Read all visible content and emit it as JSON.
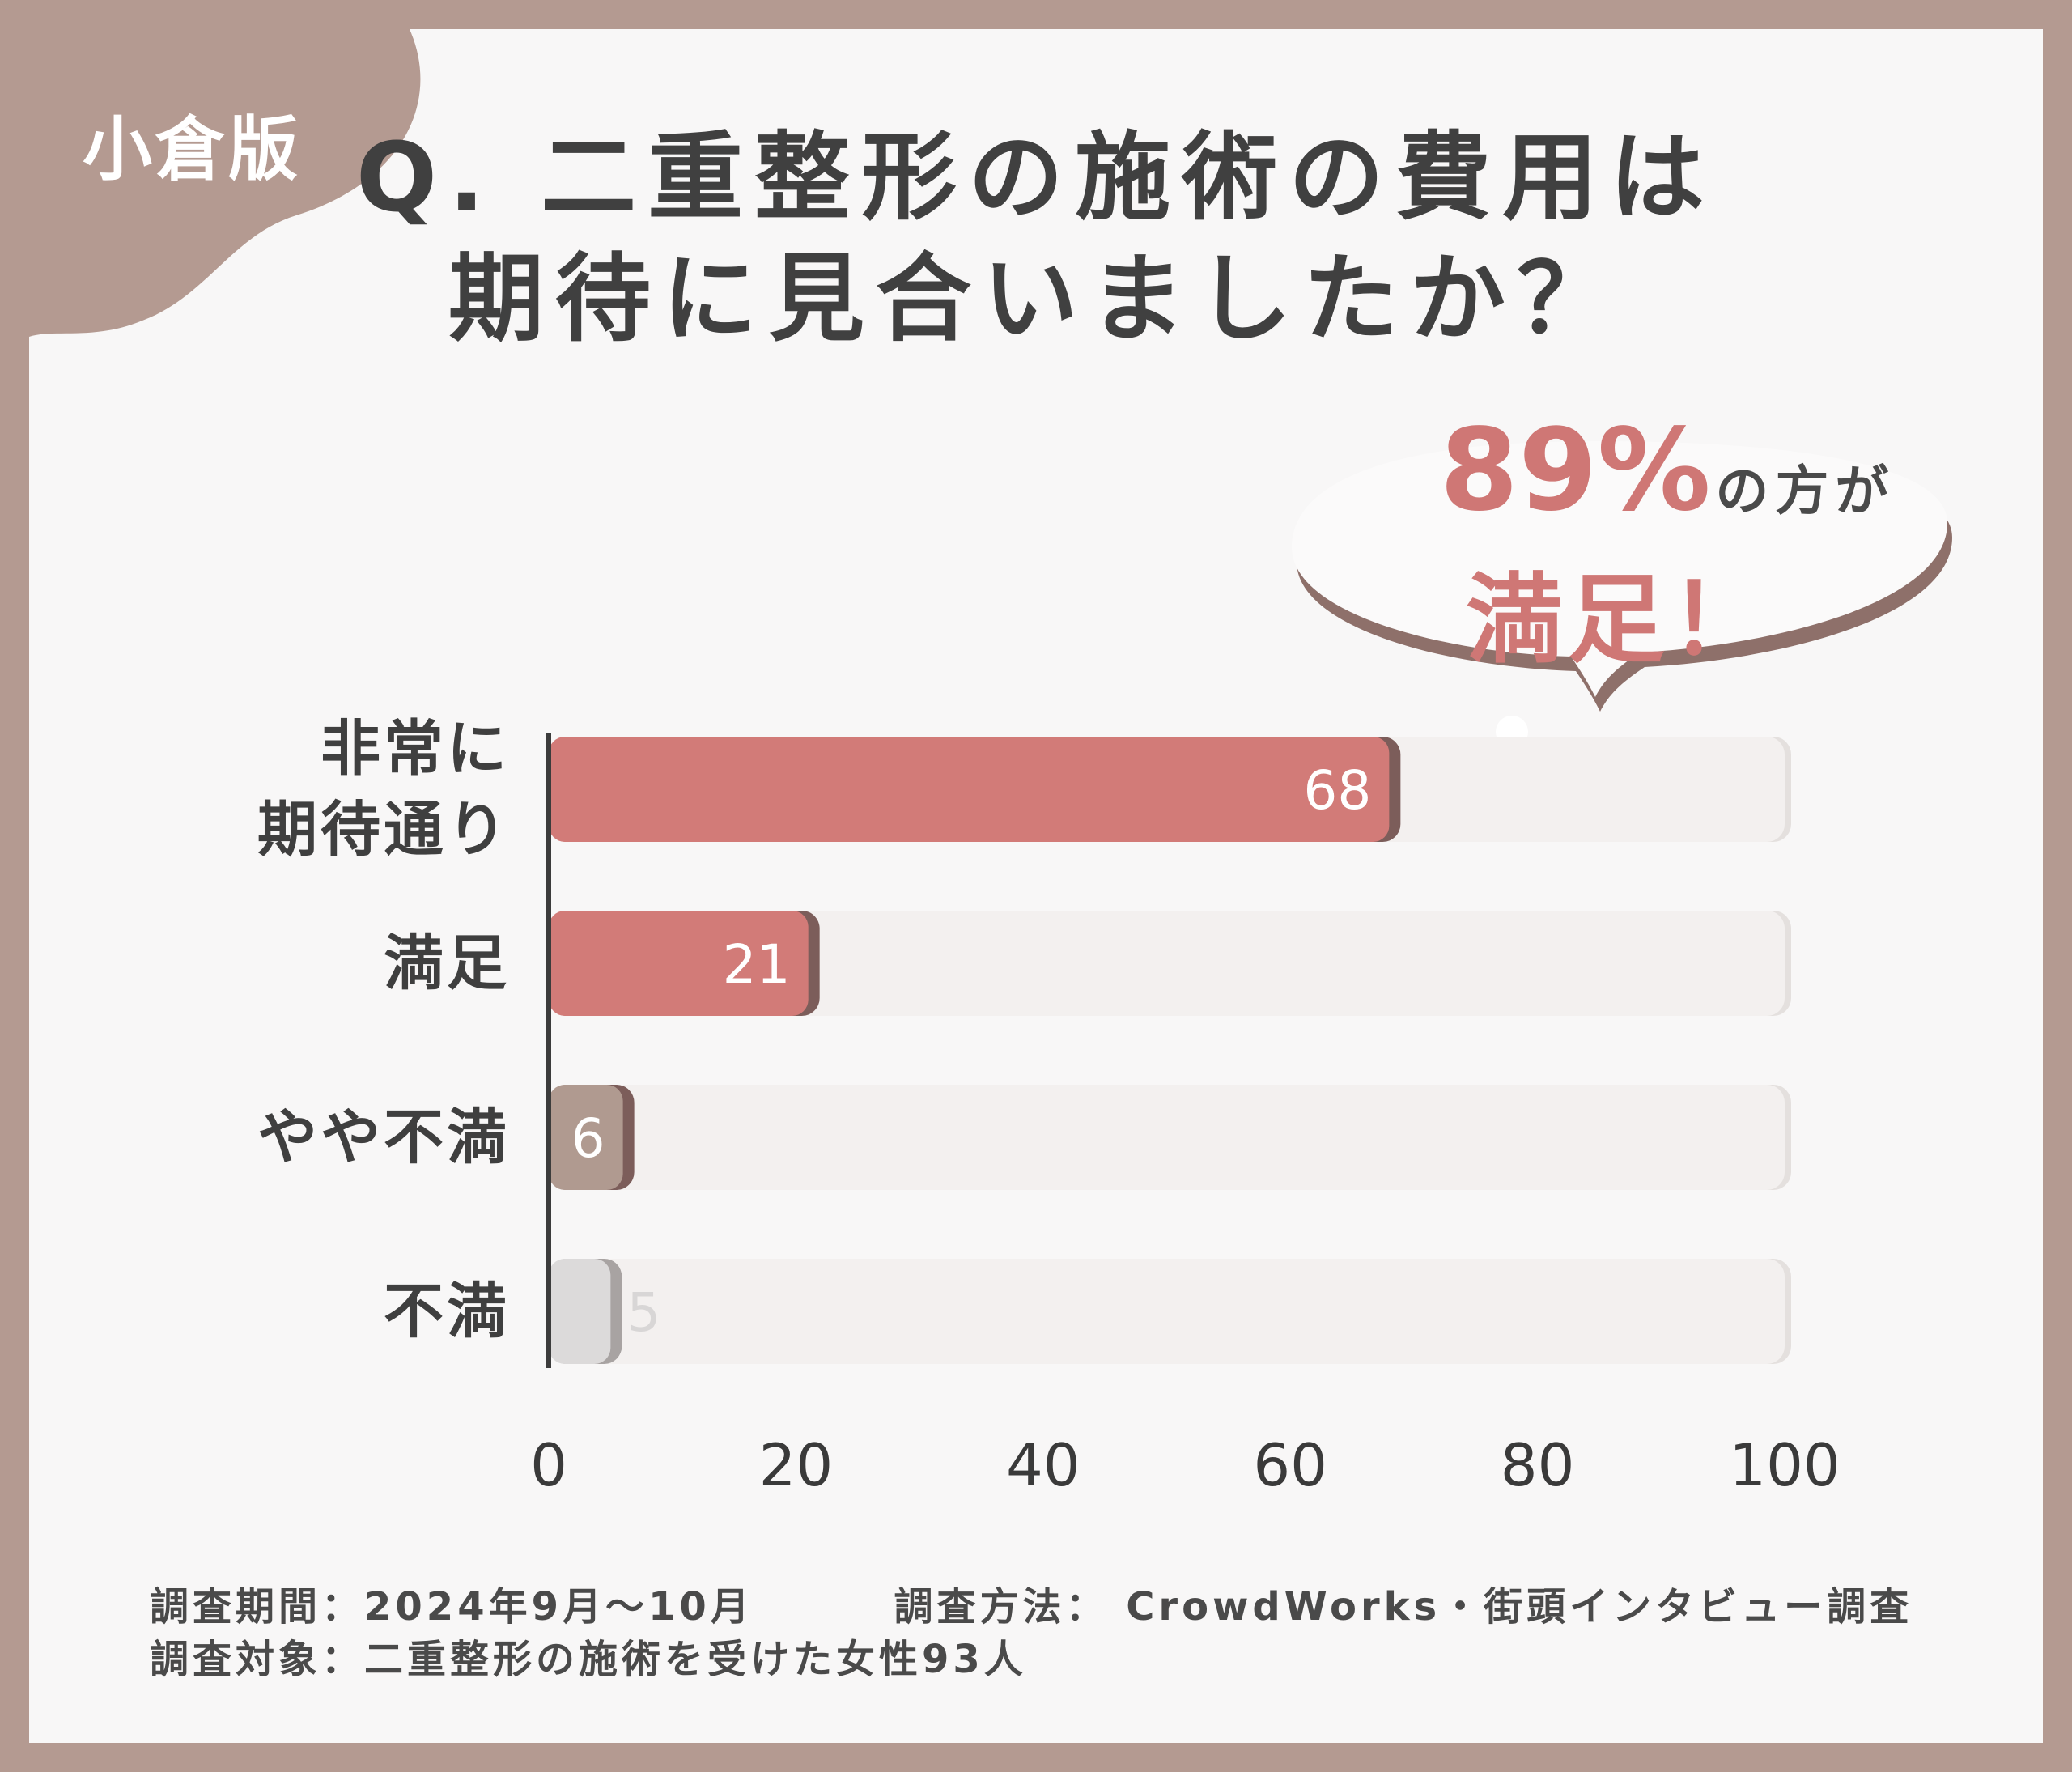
{
  "badge": "小倉版",
  "title": {
    "line1": "Q. 二重整形の施術の費用は",
    "line2": "期待に見合いましたか？"
  },
  "callout": {
    "percent": "89%",
    "suffix": "の方が",
    "line2": "満足！"
  },
  "chart_data": {
    "type": "bar",
    "orientation": "horizontal",
    "categories": [
      "非常に\n期待通り",
      "満足",
      "やや不満",
      "不満"
    ],
    "values": [
      68,
      21,
      6,
      5
    ],
    "xlim": [
      0,
      100
    ],
    "xticks": [
      0,
      20,
      40,
      60,
      80,
      100
    ],
    "grid": false,
    "colors": [
      "#d27b78",
      "#d27b78",
      "#b09a90",
      "#dcdada"
    ]
  },
  "footer": {
    "period": "調査期間：2024年9月～10月",
    "method": "調査方法： CrowdWorks・街頭インタビュー調査",
    "target": "調査対象：二重整形の施術を受けた女性93人"
  }
}
